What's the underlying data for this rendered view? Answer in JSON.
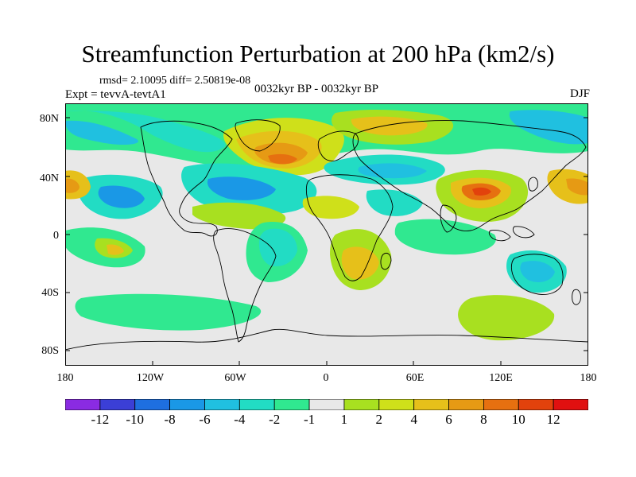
{
  "title": "Streamfunction Perturbation at 200 hPa (km2/s)",
  "stats": "rmsd= 2.10095 diff= 2.50819e-08",
  "experiment": "Expt = tevvA-tevtA1",
  "period": "0032kyr BP - 0032kyr BP",
  "season": "DJF",
  "lat_labels": [
    "80N",
    "40N",
    "0",
    "40S",
    "80S"
  ],
  "lon_labels": [
    "180",
    "120W",
    "60W",
    "0",
    "60E",
    "120E",
    "180"
  ],
  "colorbar": {
    "colors": [
      "#8a2be2",
      "#3b3fd6",
      "#1e6fe0",
      "#1a98e6",
      "#20c0e0",
      "#22dcc4",
      "#30e890",
      "#e8e8e8",
      "#a8e020",
      "#cfe01a",
      "#e6c01a",
      "#e69a14",
      "#e67010",
      "#e2420c",
      "#e01010"
    ],
    "labels": [
      "-12",
      "-10",
      "-8",
      "-6",
      "-4",
      "-2",
      "-1",
      "1",
      "2",
      "4",
      "6",
      "8",
      "10",
      "12"
    ]
  }
}
